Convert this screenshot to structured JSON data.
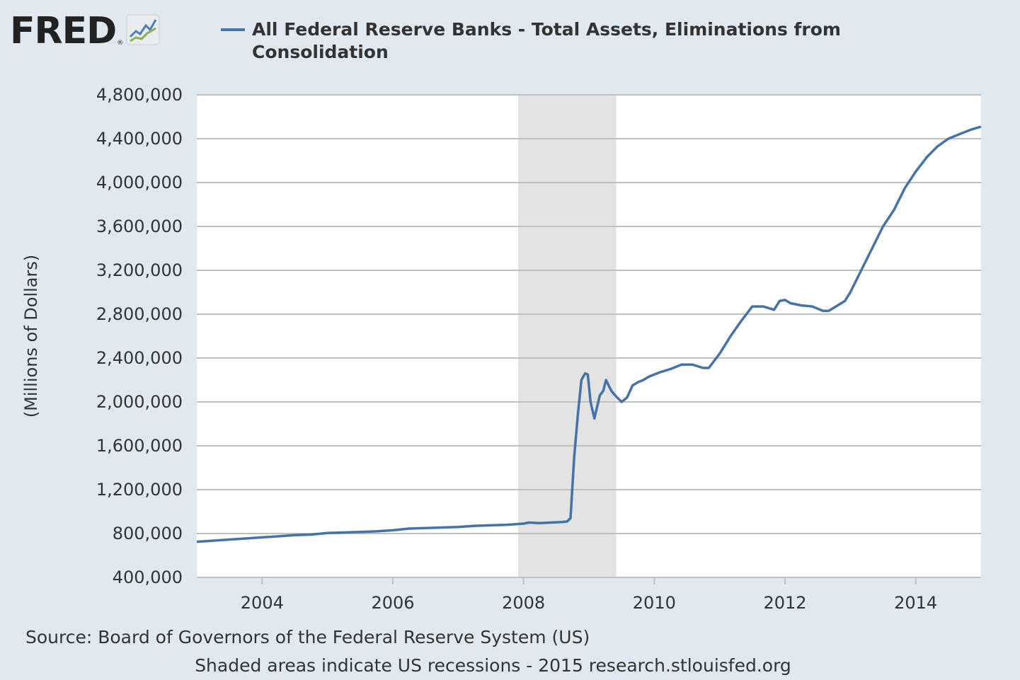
{
  "logo": {
    "text": "FRED",
    "mark": "®",
    "icon": "trend-line-icon"
  },
  "legend": {
    "label": "All Federal Reserve Banks - Total Assets, Eliminations from Consolidation",
    "color": "#4572a7"
  },
  "source": "Source: Board of Governors of the Federal Reserve System (US)",
  "note": "Shaded areas indicate US recessions - 2015 research.stlouisfed.org",
  "colors": {
    "background": "#e1e9f0",
    "plot": "#ffffff",
    "grid": "#c0c0c0",
    "line": "#4572a7",
    "recession": "#e3e3e3"
  },
  "chart_data": {
    "type": "line",
    "title": "",
    "xlabel": "",
    "ylabel": "(Millions of Dollars)",
    "xlim": [
      2003.0,
      2015.0
    ],
    "ylim": [
      400000,
      4800000
    ],
    "x_ticks": [
      "2004",
      "2006",
      "2008",
      "2010",
      "2012",
      "2014"
    ],
    "y_ticks": [
      "400,000",
      "800,000",
      "1,200,000",
      "1,600,000",
      "2,000,000",
      "2,400,000",
      "2,800,000",
      "3,200,000",
      "3,600,000",
      "4,000,000",
      "4,400,000",
      "4,800,000"
    ],
    "grid": "horizontal",
    "legend_position": "top",
    "recessions": [
      {
        "start": "2007-12",
        "end": "2009-06"
      }
    ],
    "series": [
      {
        "name": "All Federal Reserve Banks - Total Assets, Eliminations from Consolidation",
        "x": [
          "2003-01",
          "2003-04",
          "2003-07",
          "2003-10",
          "2004-01",
          "2004-04",
          "2004-07",
          "2004-10",
          "2005-01",
          "2005-04",
          "2005-07",
          "2005-10",
          "2006-01",
          "2006-04",
          "2006-07",
          "2006-10",
          "2007-01",
          "2007-04",
          "2007-07",
          "2007-10",
          "2008-01",
          "2008-02",
          "2008-04",
          "2008-06",
          "2008-08",
          "2008-09-01",
          "2008-09-20",
          "2008-10-10",
          "2008-11-01",
          "2008-11-20",
          "2008-12-10",
          "2008-12-25",
          "2009-01-10",
          "2009-02-01",
          "2009-03-01",
          "2009-03-20",
          "2009-04-05",
          "2009-04-20",
          "2009-05-05",
          "2009-06",
          "2009-07",
          "2009-08",
          "2009-09",
          "2009-10",
          "2009-11",
          "2009-12",
          "2010-01",
          "2010-02",
          "2010-04",
          "2010-06",
          "2010-08",
          "2010-10",
          "2010-11",
          "2011-01",
          "2011-03",
          "2011-05",
          "2011-07",
          "2011-09",
          "2011-11",
          "2011-12",
          "2012-01",
          "2012-02",
          "2012-04",
          "2012-06",
          "2012-08",
          "2012-09",
          "2012-10",
          "2012-12",
          "2013-01",
          "2013-03",
          "2013-05",
          "2013-07",
          "2013-09",
          "2013-11",
          "2014-01",
          "2014-03",
          "2014-05",
          "2014-07",
          "2014-09",
          "2014-11",
          "2014-12-31"
        ],
        "y": [
          725000,
          735000,
          745000,
          755000,
          765000,
          775000,
          785000,
          790000,
          805000,
          810000,
          815000,
          820000,
          830000,
          845000,
          850000,
          855000,
          860000,
          870000,
          875000,
          880000,
          890000,
          900000,
          895000,
          900000,
          905000,
          910000,
          940000,
          1500000,
          1900000,
          2200000,
          2260000,
          2250000,
          2000000,
          1850000,
          2060000,
          2100000,
          2200000,
          2150000,
          2100000,
          2050000,
          2000000,
          2040000,
          2150000,
          2180000,
          2200000,
          2230000,
          2250000,
          2270000,
          2300000,
          2340000,
          2340000,
          2310000,
          2310000,
          2440000,
          2600000,
          2740000,
          2870000,
          2870000,
          2840000,
          2920000,
          2930000,
          2900000,
          2880000,
          2870000,
          2830000,
          2830000,
          2860000,
          2920000,
          3000000,
          3200000,
          3400000,
          3600000,
          3750000,
          3950000,
          4100000,
          4230000,
          4330000,
          4400000,
          4440000,
          4480000,
          4510000
        ]
      }
    ]
  }
}
